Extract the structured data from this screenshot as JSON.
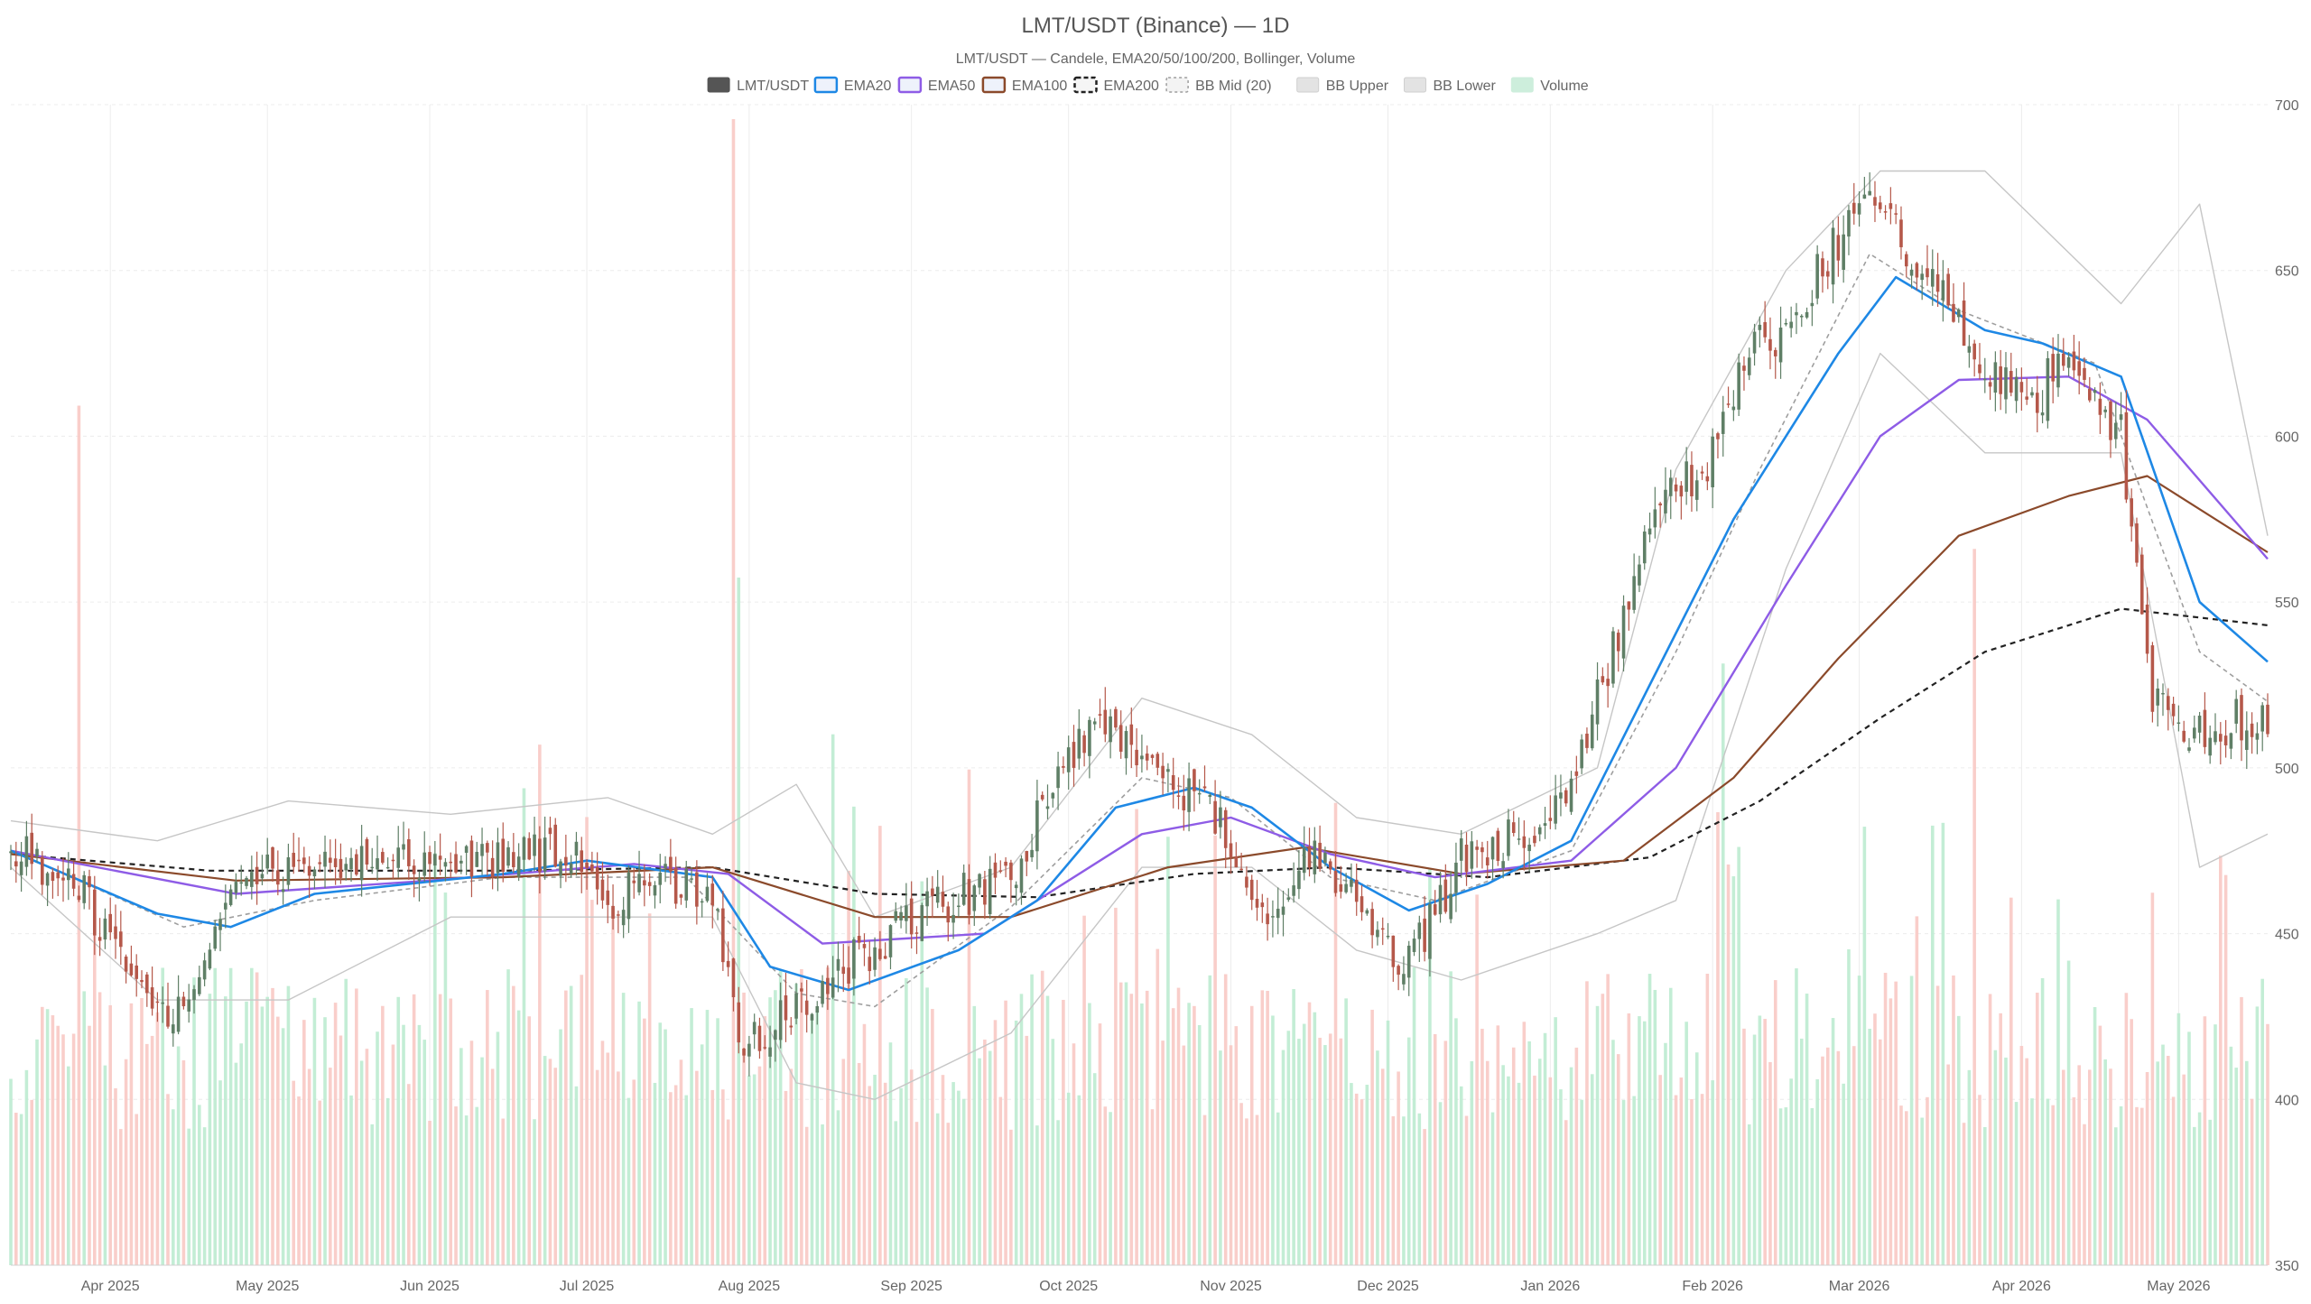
{
  "chart_data": {
    "type": "candlestick",
    "title": "LMT/USDT (Binance) — 1D",
    "subtitle": "LMT/USDT — Candele, EMA20/50/100/200, Bollinger, Volume",
    "legend": {
      "placement": "top-center",
      "items": [
        {
          "label": "LMT/USDT",
          "swatch": "#555555",
          "style": "fill"
        },
        {
          "label": "EMA20",
          "swatch": "#1e88e5",
          "style": "outline"
        },
        {
          "label": "EMA50",
          "swatch": "#8e5ce6",
          "style": "outline"
        },
        {
          "label": "EMA100",
          "swatch": "#8b4a2b",
          "style": "outline"
        },
        {
          "label": "EMA200",
          "swatch": "#222222",
          "style": "dashed"
        },
        {
          "label": "BB Mid (20)",
          "swatch": "#9e9e9e",
          "style": "dotted"
        },
        {
          "label": "BB Upper",
          "swatch": "#bdbdbd",
          "style": "fill-light"
        },
        {
          "label": "BB Lower",
          "swatch": "#bdbdbd",
          "style": "fill-light"
        },
        {
          "label": "Volume",
          "swatch": "#9fe3bd",
          "style": "fill-green"
        }
      ]
    },
    "x_axis": {
      "start_date": "2025-03-13",
      "end_date": "2026-05-18",
      "tick_labels": [
        {
          "date": "2025-04-01",
          "label": "Apr 2025"
        },
        {
          "date": "2025-05-01",
          "label": "May 2025"
        },
        {
          "date": "2025-06-01",
          "label": "Jun 2025"
        },
        {
          "date": "2025-07-01",
          "label": "Jul 2025"
        },
        {
          "date": "2025-08-01",
          "label": "Aug 2025"
        },
        {
          "date": "2025-09-01",
          "label": "Sep 2025"
        },
        {
          "date": "2025-10-01",
          "label": "Oct 2025"
        },
        {
          "date": "2025-11-01",
          "label": "Nov 2025"
        },
        {
          "date": "2025-12-01",
          "label": "Dec 2025"
        },
        {
          "date": "2026-01-01",
          "label": "Jan 2026"
        },
        {
          "date": "2026-02-01",
          "label": "Feb 2026"
        },
        {
          "date": "2026-03-01",
          "label": "Mar 2026"
        },
        {
          "date": "2026-04-01",
          "label": "Apr 2026"
        },
        {
          "date": "2026-05-01",
          "label": "May 2026"
        }
      ]
    },
    "y_axis": {
      "position": "right",
      "min": 350,
      "max": 700,
      "ticks": [
        "350",
        "400",
        "450",
        "500",
        "550",
        "600",
        "650",
        "700"
      ]
    },
    "grid": true,
    "colors": {
      "up": "#5f7f66",
      "down": "#b5584a",
      "vol_up": "#bdebd0",
      "vol_down": "#f8c9c4",
      "ema20": "#1e88e5",
      "ema50": "#8e5ce6",
      "ema100": "#8b4a2b",
      "ema200": "#222222",
      "bb_mid": "#9e9e9e",
      "bb_band": "#c6c6c6"
    },
    "candle_close_path": [
      {
        "date": "2025-03-13",
        "close": 475
      },
      {
        "date": "2025-03-25",
        "close": 468
      },
      {
        "date": "2025-04-03",
        "close": 440
      },
      {
        "date": "2025-04-15",
        "close": 425
      },
      {
        "date": "2025-04-24",
        "close": 470
      },
      {
        "date": "2025-05-10",
        "close": 470
      },
      {
        "date": "2025-05-30",
        "close": 470
      },
      {
        "date": "2025-06-15",
        "close": 472
      },
      {
        "date": "2025-06-30",
        "close": 475
      },
      {
        "date": "2025-07-05",
        "close": 460
      },
      {
        "date": "2025-07-15",
        "close": 465
      },
      {
        "date": "2025-07-25",
        "close": 462
      },
      {
        "date": "2025-07-30",
        "close": 415
      },
      {
        "date": "2025-08-08",
        "close": 425
      },
      {
        "date": "2025-08-18",
        "close": 438
      },
      {
        "date": "2025-09-02",
        "close": 455
      },
      {
        "date": "2025-09-20",
        "close": 468
      },
      {
        "date": "2025-10-01",
        "close": 505
      },
      {
        "date": "2025-10-08",
        "close": 515
      },
      {
        "date": "2025-10-18",
        "close": 500
      },
      {
        "date": "2025-10-30",
        "close": 485
      },
      {
        "date": "2025-11-06",
        "close": 455
      },
      {
        "date": "2025-11-18",
        "close": 475
      },
      {
        "date": "2025-11-28",
        "close": 455
      },
      {
        "date": "2025-12-05",
        "close": 440
      },
      {
        "date": "2025-12-15",
        "close": 472
      },
      {
        "date": "2025-12-28",
        "close": 482
      },
      {
        "date": "2026-01-05",
        "close": 495
      },
      {
        "date": "2026-01-12",
        "close": 530
      },
      {
        "date": "2026-01-20",
        "close": 575
      },
      {
        "date": "2026-02-01",
        "close": 595
      },
      {
        "date": "2026-02-08",
        "close": 625
      },
      {
        "date": "2026-02-15",
        "close": 632
      },
      {
        "date": "2026-02-25",
        "close": 660
      },
      {
        "date": "2026-03-03",
        "close": 680
      },
      {
        "date": "2026-03-10",
        "close": 655
      },
      {
        "date": "2026-03-18",
        "close": 640
      },
      {
        "date": "2026-03-26",
        "close": 618
      },
      {
        "date": "2026-04-03",
        "close": 608
      },
      {
        "date": "2026-04-10",
        "close": 628
      },
      {
        "date": "2026-04-20",
        "close": 600
      },
      {
        "date": "2026-04-26",
        "close": 520
      },
      {
        "date": "2026-05-05",
        "close": 510
      },
      {
        "date": "2026-05-18",
        "close": 517
      }
    ],
    "volume_spikes": [
      {
        "date": "2025-03-26",
        "value": 3000000,
        "dir": "down"
      },
      {
        "date": "2025-07-29",
        "value": 4000000,
        "dir": "down"
      },
      {
        "date": "2025-07-30",
        "value": 2400000,
        "dir": "up"
      },
      {
        "date": "2026-02-03",
        "value": 2100000,
        "dir": "up"
      },
      {
        "date": "2026-03-23",
        "value": 2500000,
        "dir": "down"
      },
      {
        "date": "2026-04-26",
        "value": 1300000,
        "dir": "down"
      }
    ],
    "ema20": [
      {
        "date": "2025-03-13",
        "value": 475
      },
      {
        "date": "2025-04-10",
        "value": 456
      },
      {
        "date": "2025-04-24",
        "value": 452
      },
      {
        "date": "2025-05-10",
        "value": 462
      },
      {
        "date": "2025-06-15",
        "value": 468
      },
      {
        "date": "2025-07-01",
        "value": 472
      },
      {
        "date": "2025-07-25",
        "value": 467
      },
      {
        "date": "2025-08-05",
        "value": 440
      },
      {
        "date": "2025-08-20",
        "value": 433
      },
      {
        "date": "2025-09-10",
        "value": 445
      },
      {
        "date": "2025-09-25",
        "value": 460
      },
      {
        "date": "2025-10-10",
        "value": 488
      },
      {
        "date": "2025-10-25",
        "value": 494
      },
      {
        "date": "2025-11-05",
        "value": 488
      },
      {
        "date": "2025-11-20",
        "value": 470
      },
      {
        "date": "2025-12-05",
        "value": 457
      },
      {
        "date": "2025-12-20",
        "value": 465
      },
      {
        "date": "2026-01-05",
        "value": 478
      },
      {
        "date": "2026-01-20",
        "value": 525
      },
      {
        "date": "2026-02-05",
        "value": 575
      },
      {
        "date": "2026-02-25",
        "value": 625
      },
      {
        "date": "2026-03-08",
        "value": 648
      },
      {
        "date": "2026-03-25",
        "value": 632
      },
      {
        "date": "2026-04-05",
        "value": 628
      },
      {
        "date": "2026-04-20",
        "value": 618
      },
      {
        "date": "2026-05-05",
        "value": 550
      },
      {
        "date": "2026-05-18",
        "value": 532
      }
    ],
    "ema50": [
      {
        "date": "2025-03-13",
        "value": 475
      },
      {
        "date": "2025-04-25",
        "value": 462
      },
      {
        "date": "2025-06-01",
        "value": 466
      },
      {
        "date": "2025-07-10",
        "value": 471
      },
      {
        "date": "2025-07-28",
        "value": 468
      },
      {
        "date": "2025-08-15",
        "value": 447
      },
      {
        "date": "2025-09-15",
        "value": 450
      },
      {
        "date": "2025-10-15",
        "value": 480
      },
      {
        "date": "2025-11-01",
        "value": 485
      },
      {
        "date": "2025-11-20",
        "value": 474
      },
      {
        "date": "2025-12-10",
        "value": 467
      },
      {
        "date": "2026-01-05",
        "value": 472
      },
      {
        "date": "2026-01-25",
        "value": 500
      },
      {
        "date": "2026-02-15",
        "value": 555
      },
      {
        "date": "2026-03-05",
        "value": 600
      },
      {
        "date": "2026-03-20",
        "value": 617
      },
      {
        "date": "2026-04-10",
        "value": 618
      },
      {
        "date": "2026-04-25",
        "value": 605
      },
      {
        "date": "2026-05-18",
        "value": 563
      }
    ],
    "ema100": [
      {
        "date": "2025-03-13",
        "value": 474
      },
      {
        "date": "2025-04-25",
        "value": 466
      },
      {
        "date": "2025-06-15",
        "value": 467
      },
      {
        "date": "2025-07-25",
        "value": 470
      },
      {
        "date": "2025-08-25",
        "value": 455
      },
      {
        "date": "2025-09-20",
        "value": 455
      },
      {
        "date": "2025-10-20",
        "value": 470
      },
      {
        "date": "2025-11-15",
        "value": 476
      },
      {
        "date": "2025-12-15",
        "value": 468
      },
      {
        "date": "2026-01-15",
        "value": 472
      },
      {
        "date": "2026-02-05",
        "value": 497
      },
      {
        "date": "2026-02-25",
        "value": 533
      },
      {
        "date": "2026-03-20",
        "value": 570
      },
      {
        "date": "2026-04-10",
        "value": 582
      },
      {
        "date": "2026-04-25",
        "value": 588
      },
      {
        "date": "2026-05-18",
        "value": 565
      }
    ],
    "ema200": [
      {
        "date": "2025-03-13",
        "value": 474
      },
      {
        "date": "2025-04-20",
        "value": 469
      },
      {
        "date": "2025-06-15",
        "value": 469
      },
      {
        "date": "2025-07-25",
        "value": 470
      },
      {
        "date": "2025-08-25",
        "value": 462
      },
      {
        "date": "2025-09-25",
        "value": 461
      },
      {
        "date": "2025-10-25",
        "value": 468
      },
      {
        "date": "2025-11-20",
        "value": 470
      },
      {
        "date": "2025-12-20",
        "value": 467
      },
      {
        "date": "2026-01-20",
        "value": 473
      },
      {
        "date": "2026-02-10",
        "value": 490
      },
      {
        "date": "2026-03-05",
        "value": 515
      },
      {
        "date": "2026-03-25",
        "value": 535
      },
      {
        "date": "2026-04-20",
        "value": 548
      },
      {
        "date": "2026-05-18",
        "value": 543
      }
    ],
    "bb_mid": [
      {
        "date": "2025-03-13",
        "value": 475
      },
      {
        "date": "2025-04-15",
        "value": 452
      },
      {
        "date": "2025-05-10",
        "value": 460
      },
      {
        "date": "2025-06-15",
        "value": 467
      },
      {
        "date": "2025-07-20",
        "value": 467
      },
      {
        "date": "2025-08-10",
        "value": 432
      },
      {
        "date": "2025-08-25",
        "value": 428
      },
      {
        "date": "2025-09-20",
        "value": 458
      },
      {
        "date": "2025-10-15",
        "value": 497
      },
      {
        "date": "2025-11-01",
        "value": 491
      },
      {
        "date": "2025-11-20",
        "value": 467
      },
      {
        "date": "2025-12-10",
        "value": 460
      },
      {
        "date": "2026-01-05",
        "value": 475
      },
      {
        "date": "2026-01-25",
        "value": 535
      },
      {
        "date": "2026-02-10",
        "value": 590
      },
      {
        "date": "2026-03-03",
        "value": 655
      },
      {
        "date": "2026-03-20",
        "value": 638
      },
      {
        "date": "2026-04-15",
        "value": 622
      },
      {
        "date": "2026-05-05",
        "value": 535
      },
      {
        "date": "2026-05-18",
        "value": 520
      }
    ],
    "bb_upper": [
      {
        "date": "2025-03-13",
        "value": 484
      },
      {
        "date": "2025-04-10",
        "value": 478
      },
      {
        "date": "2025-05-05",
        "value": 490
      },
      {
        "date": "2025-06-05",
        "value": 486
      },
      {
        "date": "2025-07-05",
        "value": 491
      },
      {
        "date": "2025-07-25",
        "value": 480
      },
      {
        "date": "2025-08-10",
        "value": 495
      },
      {
        "date": "2025-08-25",
        "value": 455
      },
      {
        "date": "2025-09-20",
        "value": 470
      },
      {
        "date": "2025-10-15",
        "value": 521
      },
      {
        "date": "2025-11-05",
        "value": 510
      },
      {
        "date": "2025-11-25",
        "value": 485
      },
      {
        "date": "2025-12-15",
        "value": 480
      },
      {
        "date": "2026-01-10",
        "value": 500
      },
      {
        "date": "2026-01-25",
        "value": 590
      },
      {
        "date": "2026-02-15",
        "value": 650
      },
      {
        "date": "2026-03-05",
        "value": 680
      },
      {
        "date": "2026-03-25",
        "value": 680
      },
      {
        "date": "2026-04-20",
        "value": 640
      },
      {
        "date": "2026-05-05",
        "value": 670
      },
      {
        "date": "2026-05-18",
        "value": 570
      }
    ],
    "bb_lower": [
      {
        "date": "2025-03-13",
        "value": 470
      },
      {
        "date": "2025-04-10",
        "value": 430
      },
      {
        "date": "2025-05-05",
        "value": 430
      },
      {
        "date": "2025-06-05",
        "value": 455
      },
      {
        "date": "2025-07-05",
        "value": 455
      },
      {
        "date": "2025-07-25",
        "value": 455
      },
      {
        "date": "2025-08-10",
        "value": 405
      },
      {
        "date": "2025-08-25",
        "value": 400
      },
      {
        "date": "2025-09-20",
        "value": 420
      },
      {
        "date": "2025-10-15",
        "value": 470
      },
      {
        "date": "2025-11-05",
        "value": 470
      },
      {
        "date": "2025-11-25",
        "value": 445
      },
      {
        "date": "2025-12-15",
        "value": 436
      },
      {
        "date": "2026-01-10",
        "value": 450
      },
      {
        "date": "2026-01-25",
        "value": 460
      },
      {
        "date": "2026-02-15",
        "value": 560
      },
      {
        "date": "2026-03-05",
        "value": 625
      },
      {
        "date": "2026-03-25",
        "value": 595
      },
      {
        "date": "2026-04-20",
        "value": 595
      },
      {
        "date": "2026-05-05",
        "value": 470
      },
      {
        "date": "2026-05-18",
        "value": 480
      }
    ]
  }
}
